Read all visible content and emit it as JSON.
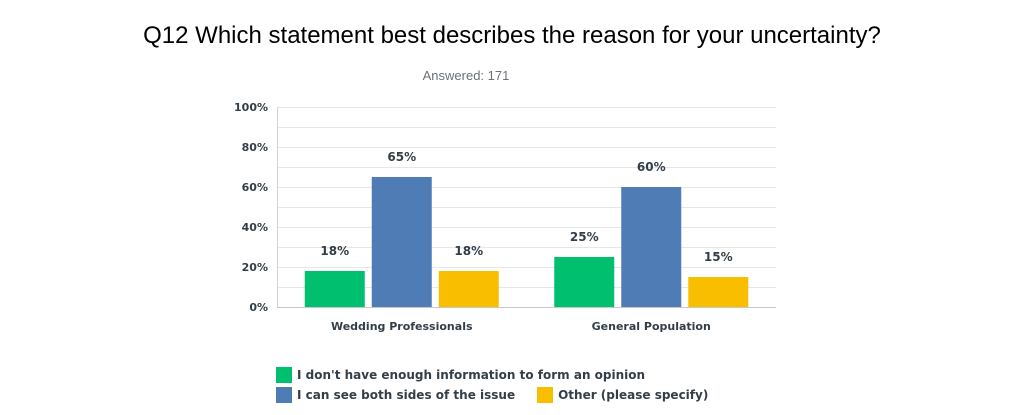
{
  "header": {
    "title": "Q12 Which statement best describes the reason for your uncertainty?",
    "answered": "Answered: 171"
  },
  "chart_data": {
    "type": "bar",
    "categories": [
      "Wedding Professionals",
      "General Population"
    ],
    "series": [
      {
        "name": "I don't have enough information to form an opinion",
        "values": [
          18,
          25
        ],
        "labels": [
          "18%",
          "25%"
        ],
        "color": "#00bf6f"
      },
      {
        "name": "I can see both sides of the issue",
        "values": [
          65,
          60
        ],
        "labels": [
          "65%",
          "60%"
        ],
        "color": "#507cb6"
      },
      {
        "name": "Other (please specify)",
        "values": [
          18,
          15
        ],
        "labels": [
          "18%",
          "15%"
        ],
        "color": "#f9be00"
      }
    ],
    "yticks": [
      "0%",
      "20%",
      "40%",
      "60%",
      "80%",
      "100%"
    ],
    "ylim": [
      0,
      100
    ],
    "grid": true,
    "legend": "bottom"
  }
}
